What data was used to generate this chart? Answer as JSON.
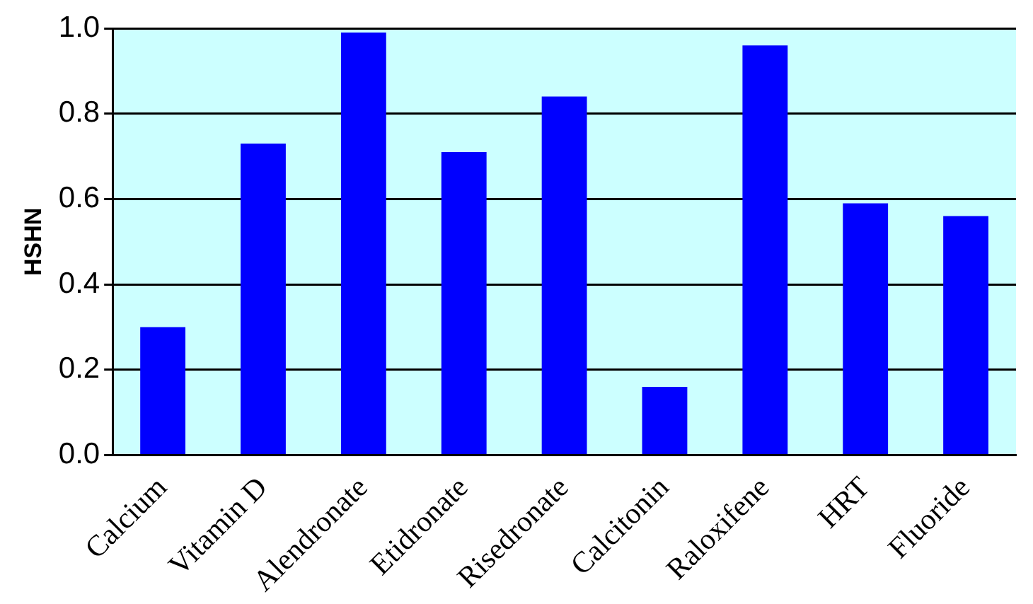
{
  "chart_data": {
    "type": "bar",
    "ylabel": "HSHN",
    "categories": [
      "Calcium",
      "Vitamin D",
      "Alendronate",
      "Etidronate",
      "Risedronate",
      "Calcitonin",
      "Raloxifene",
      "HRT",
      "Fluoride"
    ],
    "values": [
      0.3,
      0.73,
      0.99,
      0.71,
      0.84,
      0.16,
      0.96,
      0.59,
      0.56
    ],
    "color": "#0000ff",
    "ylim": [
      0,
      1
    ],
    "yticks": [
      {
        "value": 0,
        "label": "0.0"
      },
      {
        "value": 0.2,
        "label": "0.2"
      },
      {
        "value": 0.4,
        "label": "0.4"
      },
      {
        "value": 0.6,
        "label": "0.6"
      },
      {
        "value": 0.8,
        "label": "0.8"
      },
      {
        "value": 1,
        "label": "1.0"
      }
    ],
    "grid": "y",
    "legend": false
  }
}
